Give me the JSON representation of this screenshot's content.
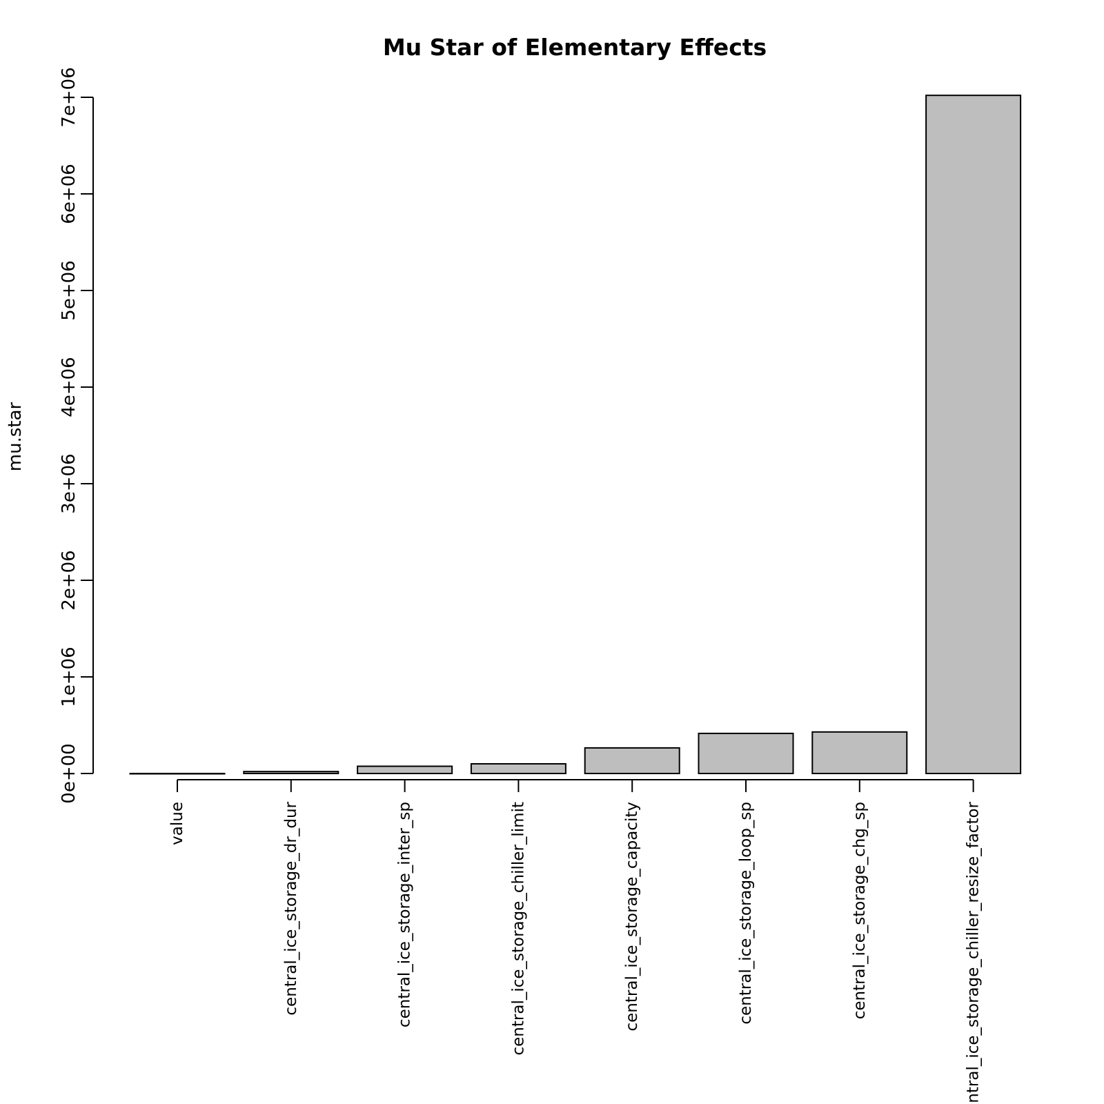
{
  "chart_data": {
    "type": "bar",
    "title": "Mu Star of Elementary Effects",
    "xlabel": "",
    "ylabel": "mu.star",
    "categories": [
      "value",
      "central_ice_storage_dr_dur",
      "central_ice_storage_inter_sp",
      "central_ice_storage_chiller_limit",
      "central_ice_storage_capacity",
      "central_ice_storage_loop_sp",
      "central_ice_storage_chg_sp",
      "central_ice_storage_chiller_resize_factor"
    ],
    "values": [
      0,
      20000,
      75000,
      100000,
      265000,
      415000,
      430000,
      7020000
    ],
    "ylim": [
      0,
      7000000
    ],
    "yticks": [
      0,
      1000000,
      2000000,
      3000000,
      4000000,
      5000000,
      6000000,
      7000000
    ],
    "ytick_labels": [
      "0e+00",
      "1e+06",
      "2e+06",
      "3e+06",
      "4e+06",
      "5e+06",
      "6e+06",
      "7e+06"
    ],
    "grid": false,
    "legend": "none",
    "colors": {
      "bar_fill": "#bebebe",
      "bar_stroke": "#000000",
      "text": "#000000"
    }
  }
}
